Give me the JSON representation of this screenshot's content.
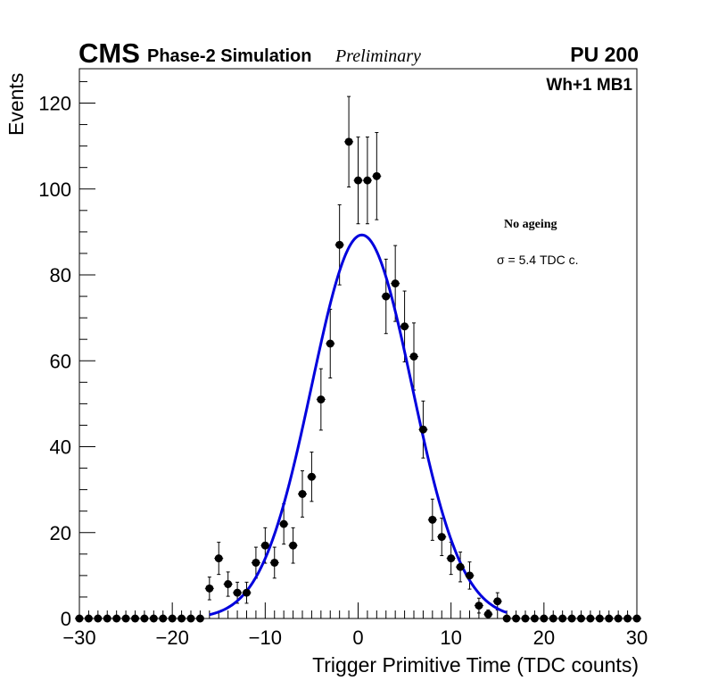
{
  "header": {
    "experiment": "CMS",
    "simulation": "Phase-2 Simulation",
    "status": "Preliminary",
    "pileup": "PU 200",
    "station": "Wh+1 MB1"
  },
  "legend": {
    "condition": "No ageing",
    "resolution": "σ = 5.4 TDC c."
  },
  "colors": {
    "data": "#000000",
    "fit": "#0000dd",
    "axis": "#000000"
  },
  "chart_data": {
    "type": "scatter",
    "title": "",
    "xlabel": "Trigger Primitive Time (TDC counts)",
    "ylabel": "Events",
    "xlim": [
      -30,
      30
    ],
    "ylim": [
      0,
      128
    ],
    "x_ticks": [
      -30,
      -20,
      -10,
      0,
      10,
      20,
      30
    ],
    "x_tick_labels": [
      "−30",
      "−20",
      "−10",
      "0",
      "10",
      "20",
      "30"
    ],
    "y_ticks": [
      0,
      20,
      40,
      60,
      80,
      100,
      120
    ],
    "y_tick_labels": [
      "0",
      "20",
      "40",
      "60",
      "80",
      "100",
      "120"
    ],
    "series": [
      {
        "name": "Data",
        "x": [
          -30,
          -29,
          -28,
          -27,
          -26,
          -25,
          -24,
          -23,
          -22,
          -21,
          -20,
          -19,
          -18,
          -17,
          -16,
          -15,
          -14,
          -13,
          -12,
          -11,
          -10,
          -9,
          -8,
          -7,
          -6,
          -5,
          -4,
          -3,
          -2,
          -1,
          0,
          1,
          2,
          3,
          4,
          5,
          6,
          7,
          8,
          9,
          10,
          11,
          12,
          13,
          14,
          15,
          16,
          17,
          18,
          19,
          20,
          21,
          22,
          23,
          24,
          25,
          26,
          27,
          28,
          29,
          30
        ],
        "y": [
          0,
          0,
          0,
          0,
          0,
          0,
          0,
          0,
          0,
          0,
          0,
          0,
          0,
          0,
          7,
          14,
          8,
          6,
          6,
          13,
          17,
          13,
          22,
          17,
          29,
          33,
          51,
          64,
          87,
          111,
          102,
          102,
          103,
          75,
          78,
          68,
          61,
          44,
          23,
          19,
          14,
          12,
          10,
          3,
          1,
          4,
          0,
          0,
          0,
          0,
          0,
          0,
          0,
          0,
          0,
          0,
          0,
          0,
          0,
          0,
          0
        ]
      },
      {
        "name": "Gaussian fit",
        "type": "line",
        "amplitude": 89.3,
        "mean": 0.4,
        "sigma": 5.4
      }
    ]
  }
}
